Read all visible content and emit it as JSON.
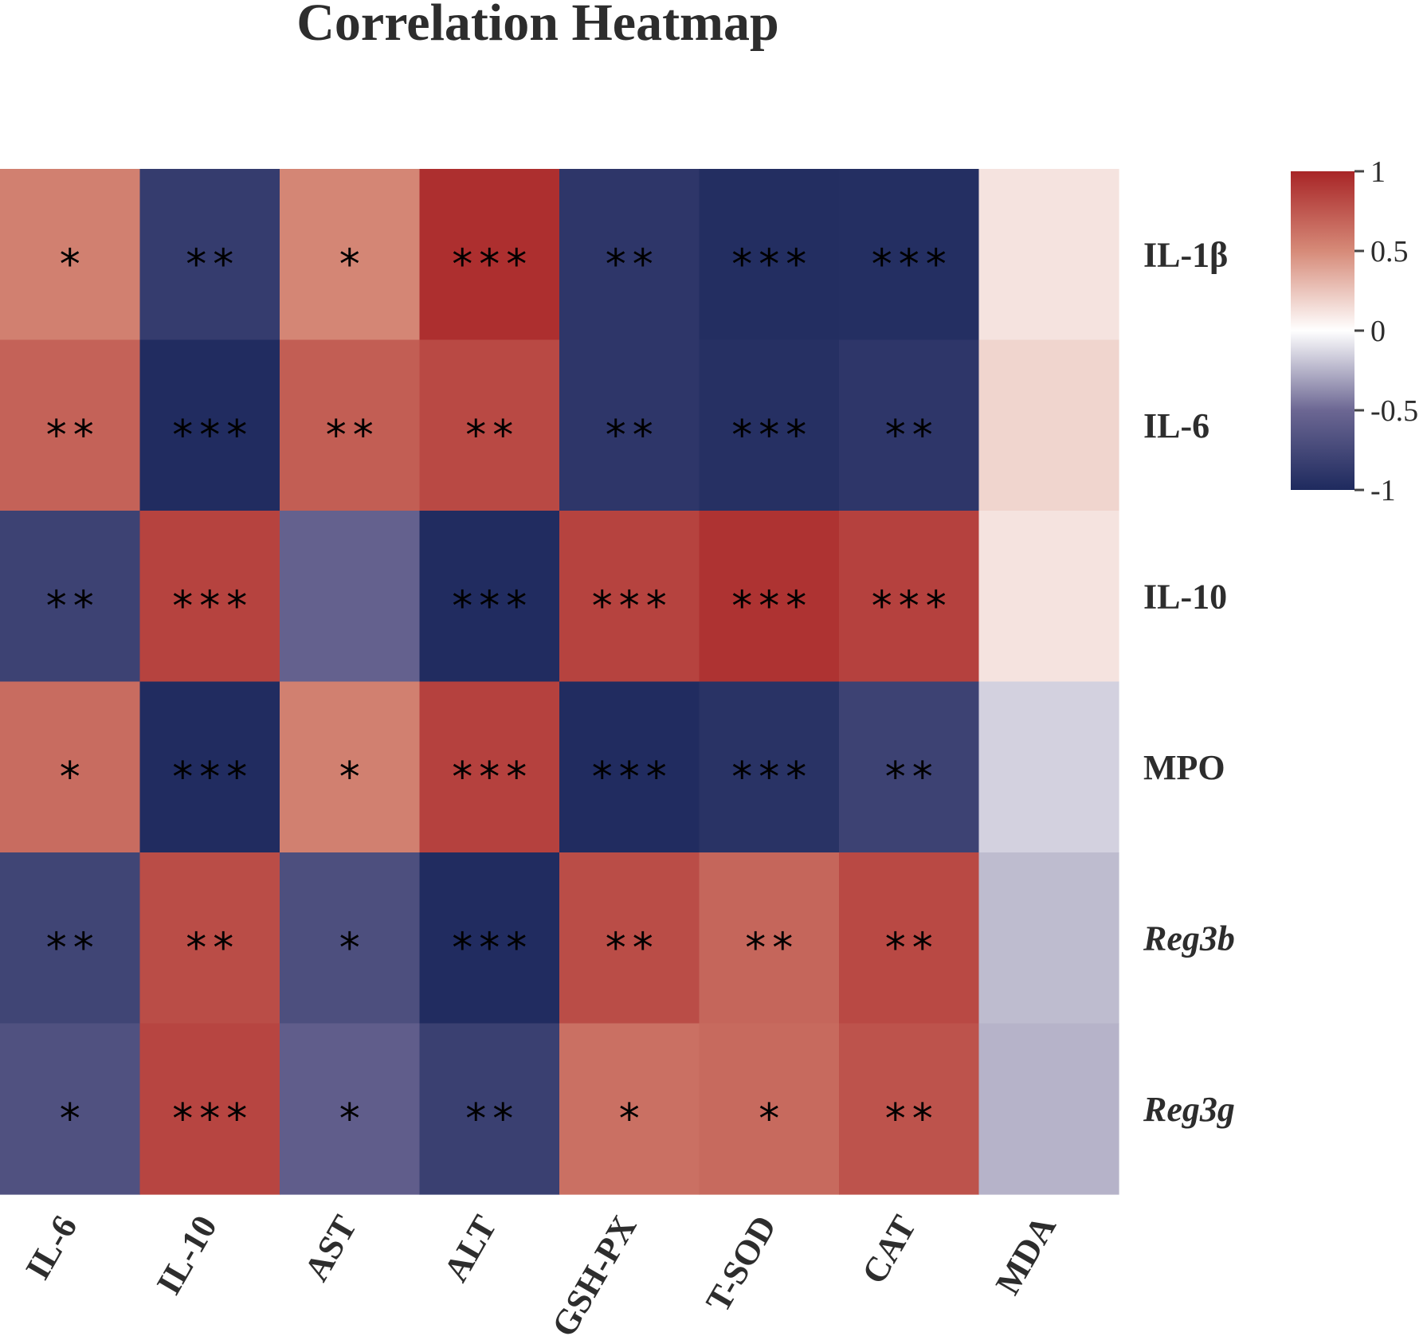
{
  "chart_data": {
    "type": "heatmap",
    "title": "Correlation Heatmap",
    "rows": [
      {
        "label": "IL-1β",
        "italic": false
      },
      {
        "label": "IL-6",
        "italic": false
      },
      {
        "label": "IL-10",
        "italic": false
      },
      {
        "label": "MPO",
        "italic": false
      },
      {
        "label": "Reg3b",
        "italic": true
      },
      {
        "label": "Reg3g",
        "italic": true
      }
    ],
    "columns": [
      "IL-6",
      "IL-10",
      "AST",
      "ALT",
      "GSH-PX",
      "T-SOD",
      "CAT",
      "MDA"
    ],
    "values": [
      [
        0.55,
        -0.85,
        0.52,
        0.95,
        -0.9,
        -0.97,
        -0.96,
        0.12
      ],
      [
        0.7,
        -0.98,
        0.72,
        0.82,
        -0.9,
        -0.95,
        -0.9,
        0.18
      ],
      [
        -0.8,
        0.85,
        -0.55,
        -0.98,
        0.85,
        0.93,
        0.86,
        0.12
      ],
      [
        0.65,
        -0.98,
        0.55,
        0.86,
        -0.98,
        -0.93,
        -0.8,
        -0.15
      ],
      [
        -0.78,
        0.8,
        -0.7,
        -0.98,
        0.8,
        0.68,
        0.82,
        -0.22
      ],
      [
        -0.68,
        0.84,
        -0.58,
        -0.82,
        0.63,
        0.66,
        0.77,
        -0.25
      ]
    ],
    "significance": [
      [
        "*",
        "**",
        "*",
        "***",
        "**",
        "***",
        "***",
        ""
      ],
      [
        "**",
        "***",
        "**",
        "**",
        "**",
        "***",
        "**",
        ""
      ],
      [
        "**",
        "***",
        "",
        "***",
        "***",
        "***",
        "***",
        ""
      ],
      [
        "*",
        "***",
        "*",
        "***",
        "***",
        "***",
        "**",
        ""
      ],
      [
        "**",
        "**",
        "*",
        "***",
        "**",
        "**",
        "**",
        ""
      ],
      [
        "*",
        "***",
        "*",
        "**",
        "*",
        "*",
        "**",
        ""
      ]
    ],
    "colorbar": {
      "range": [
        -1,
        1
      ],
      "ticks": [
        1,
        0.5,
        0,
        -0.5,
        -1
      ],
      "tick_labels": [
        "1",
        "0.5",
        "0",
        "-0.5",
        "-1"
      ],
      "colors": {
        "low": "#1e2a5e",
        "mid": "#ffffff",
        "high": "#a82527"
      }
    }
  }
}
